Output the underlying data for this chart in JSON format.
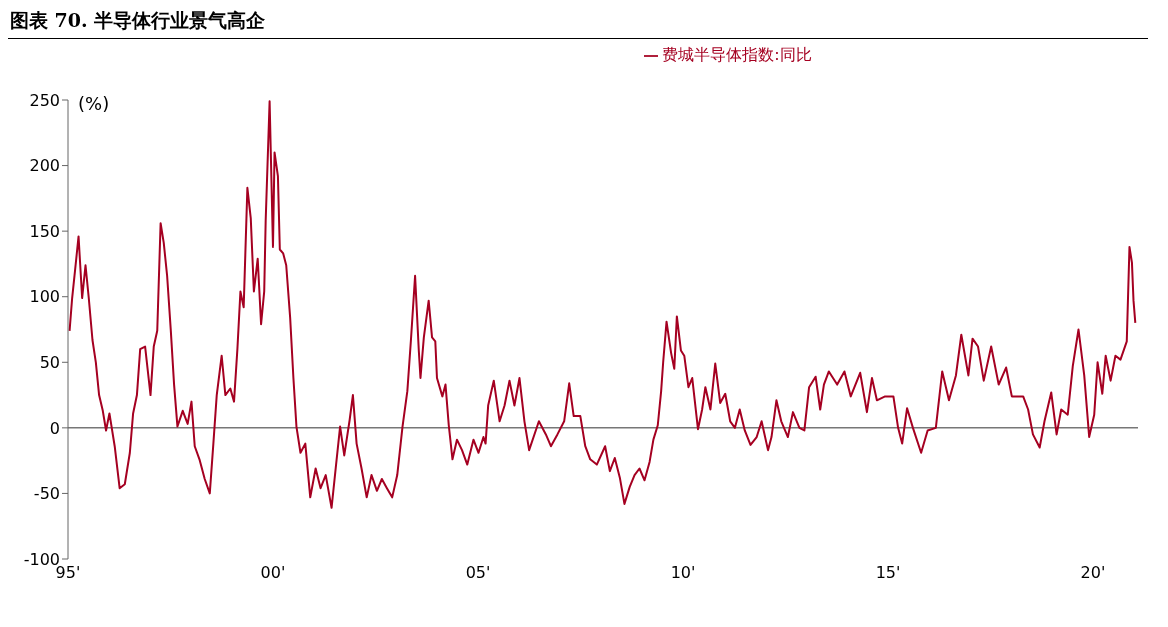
{
  "chart_data": {
    "type": "line",
    "title": "图表 70. 半导体行业景气高企",
    "ylabel": "(%)",
    "legend": "top",
    "grid": false,
    "marker": "none",
    "line_style": "solid",
    "xlim": [
      "1995-01-01",
      "2021-02-05"
    ],
    "xticks": [
      {
        "value": "1995",
        "label": "95'"
      },
      {
        "value": "2000",
        "label": "00'"
      },
      {
        "value": "2005",
        "label": "05'"
      },
      {
        "value": "2010",
        "label": "10'"
      },
      {
        "value": "2015",
        "label": "15'"
      },
      {
        "value": "2020",
        "label": "20'"
      }
    ],
    "ref_lines": [
      {
        "axis": "y",
        "value": 0,
        "color": "#777777",
        "line_style": "solid"
      }
    ],
    "ylim": [
      -100,
      250
    ],
    "yticks": [
      -100,
      -50,
      0,
      50,
      100,
      150,
      200,
      250
    ],
    "series": [
      {
        "name": "费城半导体指数:同比",
        "color": "#a50021",
        "x": [
          "1995-01-15",
          "1995-02-07",
          "1995-03-06",
          "1995-04-05",
          "1995-05-07",
          "1995-06-06",
          "1995-07-05",
          "1995-08-07",
          "1995-09-06",
          "1995-10-05",
          "1995-11-07",
          "1995-12-06",
          "1996-01-05",
          "1996-02-21",
          "1996-04-05",
          "1996-05-21",
          "1996-07-05",
          "1996-08-03",
          "1996-09-06",
          "1996-10-05",
          "1996-11-18",
          "1997-01-05",
          "1997-02-03",
          "1997-03-06",
          "1997-04-05",
          "1997-05-03",
          "1997-06-02",
          "1997-07-05",
          "1997-08-03",
          "1997-09-02",
          "1997-10-19",
          "1997-12-02",
          "1998-01-05",
          "1998-02-03",
          "1998-03-17",
          "1998-05-03",
          "1998-06-17",
          "1998-07-19",
          "1998-08-18",
          "1998-10-01",
          "1998-11-03",
          "1998-12-17",
          "1999-01-19",
          "1999-02-18",
          "1999-03-17",
          "1999-04-15",
          "1999-05-18",
          "1999-06-17",
          "1999-07-15",
          "1999-08-18",
          "1999-09-17",
          "1999-10-15",
          "1999-10-28",
          "1999-12-02",
          "2000-01-01",
          "2000-01-15",
          "2000-02-14",
          "2000-03-02",
          "2000-04-01",
          "2000-04-28",
          "2000-06-02",
          "2000-07-01",
          "2000-07-28",
          "2000-09-02",
          "2000-10-15",
          "2000-11-28",
          "2001-01-15",
          "2001-02-28",
          "2001-04-15",
          "2001-06-06",
          "2001-07-15",
          "2001-08-21",
          "2001-09-27",
          "2001-11-14",
          "2001-12-13",
          "2002-01-15",
          "2002-02-28",
          "2002-04-15",
          "2002-05-28",
          "2002-07-15",
          "2002-08-28",
          "2002-10-12",
          "2002-11-28",
          "2003-01-12",
          "2003-02-28",
          "2003-04-12",
          "2003-05-14",
          "2003-06-20",
          "2003-07-23",
          "2003-08-07",
          "2003-09-06",
          "2003-10-19",
          "2003-11-18",
          "2003-12-17",
          "2004-01-01",
          "2004-02-18",
          "2004-03-17",
          "2004-04-15",
          "2004-05-18",
          "2004-06-27",
          "2004-08-11",
          "2004-09-27",
          "2004-11-21",
          "2005-01-05",
          "2005-02-18",
          "2005-03-09",
          "2005-04-01",
          "2005-05-21",
          "2005-07-12",
          "2005-08-25",
          "2005-10-08",
          "2005-11-21",
          "2006-01-05",
          "2006-02-18",
          "2006-04-01",
          "2006-06-27",
          "2006-08-28",
          "2006-10-12",
          "2006-12-09",
          "2007-02-07",
          "2007-03-24",
          "2007-05-03",
          "2007-07-01",
          "2007-08-14",
          "2007-09-27",
          "2007-11-25",
          "2008-02-07",
          "2008-03-20",
          "2008-05-03",
          "2008-06-17",
          "2008-07-28",
          "2008-09-13",
          "2008-10-26",
          "2008-12-09",
          "2009-01-23",
          "2009-03-09",
          "2009-04-12",
          "2009-05-21",
          "2009-06-20",
          "2009-07-08",
          "2009-08-07",
          "2009-09-17",
          "2009-10-15",
          "2009-11-07",
          "2009-12-13",
          "2010-01-12",
          "2010-02-18",
          "2010-03-24",
          "2010-05-14",
          "2010-06-20",
          "2010-07-19",
          "2010-09-02",
          "2010-10-15",
          "2010-11-28",
          "2011-01-12",
          "2011-02-25",
          "2011-04-08",
          "2011-05-21",
          "2011-07-05",
          "2011-08-25",
          "2011-10-19",
          "2011-12-02",
          "2012-01-28",
          "2012-02-28",
          "2012-04-12",
          "2012-05-25",
          "2012-07-23",
          "2012-09-06",
          "2012-11-03",
          "2012-12-17",
          "2013-01-28",
          "2013-03-27",
          "2013-05-07",
          "2013-06-09",
          "2013-07-23",
          "2013-10-05",
          "2013-12-09",
          "2014-02-03",
          "2014-04-28",
          "2014-06-27",
          "2014-08-11",
          "2014-09-24",
          "2014-12-06",
          "2015-02-18",
          "2015-04-01",
          "2015-05-07",
          "2015-06-20",
          "2015-08-11",
          "2015-10-23",
          "2015-12-20",
          "2016-03-02",
          "2016-04-28",
          "2016-06-27",
          "2016-08-28",
          "2016-10-15",
          "2016-12-17",
          "2017-01-23",
          "2017-03-13",
          "2017-05-03",
          "2017-07-08",
          "2017-09-13",
          "2017-11-18",
          "2018-01-08",
          "2018-04-19",
          "2018-06-02",
          "2018-07-15",
          "2018-09-13",
          "2018-10-26",
          "2018-12-25",
          "2019-02-11",
          "2019-03-24",
          "2019-05-21",
          "2019-07-05",
          "2019-08-25",
          "2019-10-15",
          "2019-11-28",
          "2020-01-12",
          "2020-02-11",
          "2020-03-24",
          "2020-04-23",
          "2020-06-06",
          "2020-07-19",
          "2020-09-02",
          "2020-10-28",
          "2020-11-21",
          "2020-12-13",
          "2020-12-27",
          "2021-01-12"
        ],
        "values": [
          74,
          99,
          121,
          146,
          99,
          124,
          99,
          67,
          50,
          25,
          13,
          -2,
          11,
          -14,
          -46,
          -43,
          -19,
          11,
          25,
          60,
          62,
          25,
          62,
          74,
          156,
          141,
          116,
          74,
          33,
          1,
          13,
          3,
          20,
          -14,
          -24,
          -39,
          -50,
          -12,
          25,
          55,
          25,
          30,
          20,
          60,
          104,
          92,
          183,
          160,
          104,
          129,
          79,
          104,
          158,
          249,
          138,
          210,
          192,
          136,
          133,
          124,
          84,
          38,
          1,
          -19,
          -12,
          -53,
          -31,
          -46,
          -36,
          -61,
          -29,
          1,
          -21,
          6,
          25,
          -12,
          -31,
          -53,
          -36,
          -48,
          -39,
          -46,
          -53,
          -36,
          1,
          28,
          67,
          116,
          59,
          38,
          69,
          97,
          69,
          66,
          38,
          24,
          33,
          2,
          -24,
          -9,
          -17,
          -28,
          -9,
          -19,
          -7,
          -12,
          17,
          36,
          5,
          17,
          36,
          17,
          38,
          5,
          -17,
          5,
          -5,
          -14,
          -5,
          5,
          34,
          9,
          9,
          -14,
          -24,
          -28,
          -14,
          -33,
          -23,
          -38,
          -58,
          -45,
          -36,
          -31,
          -40,
          -26,
          -9,
          2,
          28,
          50,
          81,
          57,
          45,
          85,
          59,
          55,
          31,
          38,
          -1,
          14,
          31,
          14,
          49,
          19,
          26,
          5,
          0,
          14,
          -2,
          -13,
          -7,
          5,
          -17,
          -7,
          21,
          5,
          -7,
          12,
          0,
          -2,
          31,
          39,
          14,
          33,
          43,
          33,
          43,
          24,
          42,
          12,
          38,
          21,
          24,
          24,
          0,
          -12,
          15,
          0,
          -19,
          -2,
          0,
          43,
          21,
          40,
          71,
          40,
          68,
          62,
          36,
          62,
          33,
          46,
          24,
          24,
          14,
          -5,
          -15,
          5,
          27,
          -5,
          14,
          10,
          47,
          75,
          40,
          -7,
          10,
          50,
          26,
          55,
          36,
          55,
          52,
          66,
          138,
          126,
          97,
          80
        ]
      }
    ]
  }
}
